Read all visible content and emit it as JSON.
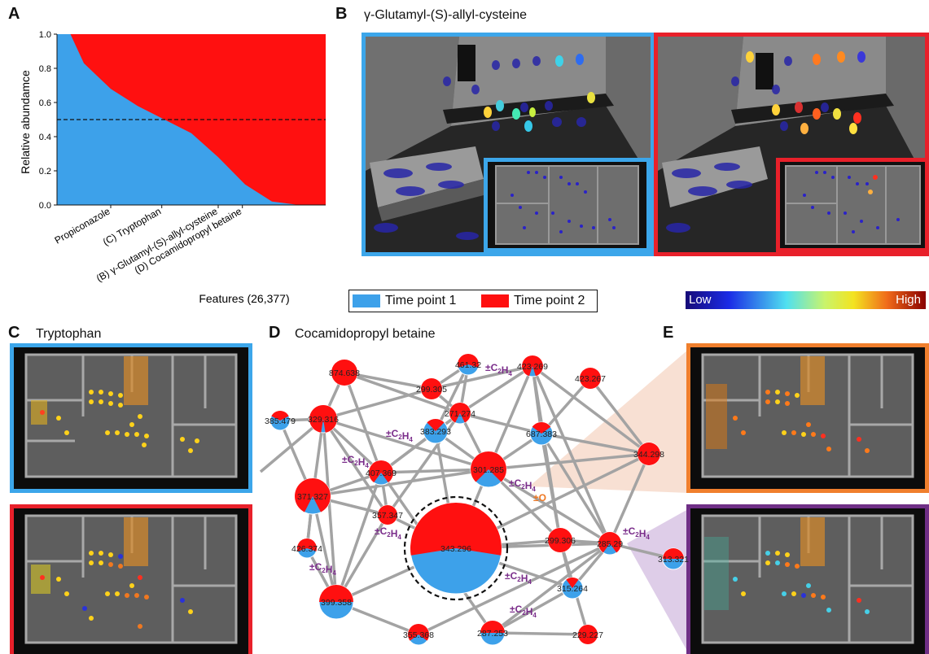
{
  "panels": {
    "A": "A",
    "B": "B",
    "C": "C",
    "D": "D",
    "E": "E"
  },
  "titles": {
    "B": "γ-Glutamyl-(S)-allyl-cysteine",
    "C": "Tryptophan",
    "D": "Cocamidopropyl betaine"
  },
  "colors": {
    "time_point_1": "#3da1ea",
    "time_point_2": "#ff1010",
    "frame_blue": "#3ca6ea",
    "frame_red": "#e8202a",
    "frame_orange": "#f07f2d",
    "frame_purple": "#6f2f86",
    "annotation_purple": "#7a2d8a",
    "annotation_orange": "#ee7722"
  },
  "legend": {
    "tp1": "Time point 1",
    "tp2": "Time point 2"
  },
  "colorbar": {
    "low": "Low",
    "high": "High"
  },
  "chart_data": {
    "type": "area",
    "ylabel": "Relative abundamce",
    "xlabel": "Features (26,377)",
    "ylim": [
      0,
      1
    ],
    "yticks": [
      "0.0",
      "0.2",
      "0.4",
      "0.6",
      "0.8",
      "1.0"
    ],
    "reference_line": 0.5,
    "x_annotations": [
      "Propiconazole",
      "(C) Tryptophan",
      "(B) γ-Glutamyl-(S)-allyl-cysteine",
      "(D) Cocamidopropyl betaine"
    ],
    "series": [
      {
        "name": "Time point 1",
        "x": [
          0,
          0.05,
          0.1,
          0.2,
          0.3,
          0.4,
          0.5,
          0.6,
          0.7,
          0.8,
          0.9,
          1.0
        ],
        "values": [
          1.0,
          1.0,
          0.83,
          0.68,
          0.58,
          0.5,
          0.42,
          0.28,
          0.12,
          0.02,
          0.0,
          0.0
        ]
      },
      {
        "name": "Time point 2",
        "x": [
          0,
          0.05,
          0.1,
          0.2,
          0.3,
          0.4,
          0.5,
          0.6,
          0.7,
          0.8,
          0.9,
          1.0
        ],
        "values": [
          0.0,
          0.0,
          0.17,
          0.32,
          0.42,
          0.5,
          0.58,
          0.72,
          0.88,
          0.98,
          1.0,
          1.0
        ]
      }
    ]
  },
  "network": {
    "nodes": [
      {
        "label": "874.638",
        "tp2": 1.0
      },
      {
        "label": "461.32",
        "tp2": 0.6
      },
      {
        "label": "423.269",
        "tp2": 0.9
      },
      {
        "label": "423.267",
        "tp2": 1.0
      },
      {
        "label": "299.305",
        "tp2": 1.0
      },
      {
        "label": "385.479",
        "tp2": 0.35
      },
      {
        "label": "329.316",
        "tp2": 0.95
      },
      {
        "label": "271.274",
        "tp2": 0.85
      },
      {
        "label": "383.293",
        "tp2": 0.25
      },
      {
        "label": "687.383",
        "tp2": 0.3
      },
      {
        "label": "344.298",
        "tp2": 1.0
      },
      {
        "label": "407.369",
        "tp2": 0.8
      },
      {
        "label": "301.285",
        "tp2": 0.75
      },
      {
        "label": "371.327",
        "tp2": 0.85
      },
      {
        "label": "357.347",
        "tp2": 1.0
      },
      {
        "label": "426.374",
        "tp2": 0.6
      },
      {
        "label": "343.296",
        "tp2": 0.55
      },
      {
        "label": "285.29",
        "tp2": 0.8
      },
      {
        "label": "313.321",
        "tp2": 0.5
      },
      {
        "label": "299.306",
        "tp2": 1.0
      },
      {
        "label": "315.264",
        "tp2": 0.2
      },
      {
        "label": "399.358",
        "tp2": 0.5
      },
      {
        "label": "287.253",
        "tp2": 0.5
      },
      {
        "label": "355.368",
        "tp2": 0.7
      },
      {
        "label": "229.227",
        "tp2": 1.0
      }
    ],
    "edge_labels": [
      "±C2H4",
      "±C2H4",
      "±C2H4",
      "±C2H4",
      "±C2H4",
      "±C2H4",
      "±C2H4",
      "±C2H4",
      "±C2H4"
    ],
    "oxygen_label": "±O",
    "formula": {
      "pm": "±C",
      "sub1": "2",
      "h": "H",
      "sub2": "4"
    }
  }
}
